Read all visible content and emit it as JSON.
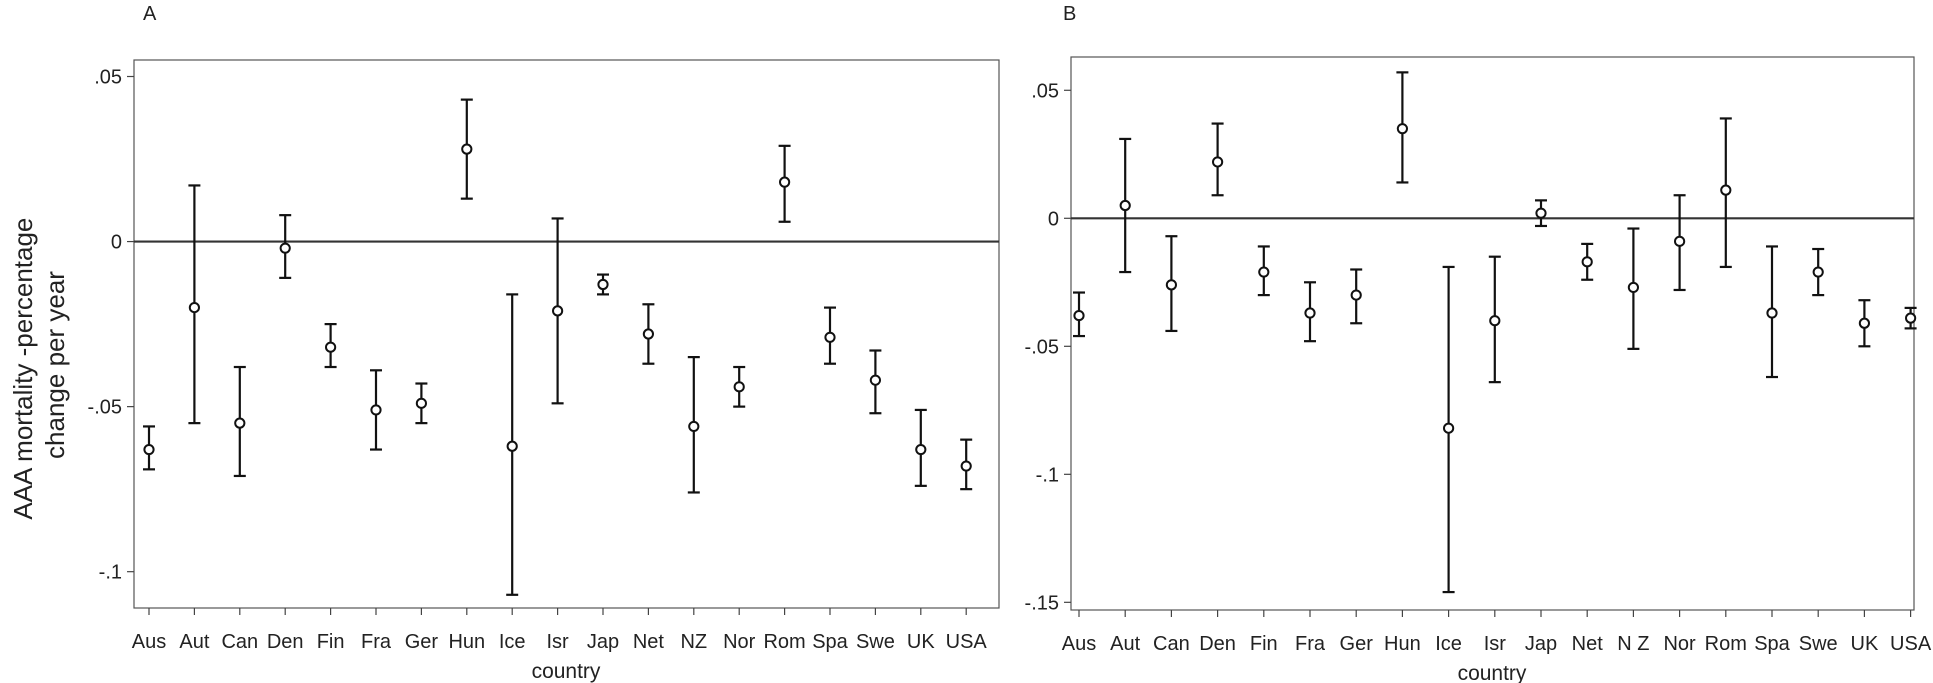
{
  "chart_data": [
    {
      "type": "scatter",
      "panel_label": "A",
      "title": "",
      "xlabel": "country",
      "ylabel_lines": [
        "AAA mortality -percentage",
        "change per year"
      ],
      "categories": [
        "Aus",
        "Aut",
        "Can",
        "Den",
        "Fin",
        "Fra",
        "Ger",
        "Hun",
        "Ice",
        "Isr",
        "Jap",
        "Net",
        "NZ",
        "Nor",
        "Rom",
        "Spa",
        "Swe",
        "UK",
        "USA"
      ],
      "y_ticks": [
        0.05,
        0,
        -0.05,
        -0.1
      ],
      "y_tick_labels": [
        ".05",
        "0",
        "-.05",
        "-.1"
      ],
      "ylim": [
        -0.111,
        0.055
      ],
      "reference_line": 0,
      "series": [
        {
          "estimate": [
            -0.063,
            -0.02,
            -0.055,
            -0.002,
            -0.032,
            -0.051,
            -0.049,
            0.028,
            -0.062,
            -0.021,
            -0.013,
            -0.028,
            -0.056,
            -0.044,
            0.018,
            -0.029,
            -0.042,
            -0.063,
            -0.068
          ],
          "lower": [
            -0.069,
            -0.055,
            -0.071,
            -0.011,
            -0.038,
            -0.063,
            -0.055,
            0.013,
            -0.107,
            -0.049,
            -0.016,
            -0.037,
            -0.076,
            -0.05,
            0.006,
            -0.037,
            -0.052,
            -0.074,
            -0.075
          ],
          "upper": [
            -0.056,
            0.017,
            -0.038,
            0.008,
            -0.025,
            -0.039,
            -0.043,
            0.043,
            -0.016,
            0.007,
            -0.01,
            -0.019,
            -0.035,
            -0.038,
            0.029,
            -0.02,
            -0.033,
            -0.051,
            -0.06
          ]
        }
      ]
    },
    {
      "type": "scatter",
      "panel_label": "B",
      "title": "",
      "xlabel": "country",
      "categories": [
        "Aus",
        "Aut",
        "Can",
        "Den",
        "Fin",
        "Fra",
        "Ger",
        "Hun",
        "Ice",
        "Isr",
        "Jap",
        "Net",
        "NZ",
        "Nor",
        "Rom",
        "Spa",
        "Swe",
        "UK",
        "USA"
      ],
      "category_display": [
        "Aus",
        "Aut",
        "Can",
        "Den",
        "Fin",
        "Fra",
        "Ger",
        "Hun",
        "Ice",
        "Isr",
        "Jap",
        "Net",
        "N Z",
        "Nor",
        "Rom",
        "Spa",
        "Swe",
        "UK",
        "USA"
      ],
      "y_ticks": [
        0.05,
        0,
        -0.05,
        -0.1,
        -0.15
      ],
      "y_tick_labels": [
        ".05",
        "0",
        "-.05",
        "-.1",
        "-.15"
      ],
      "ylim": [
        -0.153,
        0.063
      ],
      "reference_line": 0,
      "series": [
        {
          "estimate": [
            -0.038,
            0.005,
            -0.026,
            0.022,
            -0.021,
            -0.037,
            -0.03,
            0.035,
            -0.082,
            -0.04,
            0.002,
            -0.017,
            -0.027,
            -0.009,
            0.011,
            -0.037,
            -0.021,
            -0.041,
            -0.039
          ],
          "lower": [
            -0.046,
            -0.021,
            -0.044,
            0.009,
            -0.03,
            -0.048,
            -0.041,
            0.014,
            -0.146,
            -0.064,
            -0.003,
            -0.024,
            -0.051,
            -0.028,
            -0.019,
            -0.062,
            -0.03,
            -0.05,
            -0.043
          ],
          "upper": [
            -0.029,
            0.031,
            -0.007,
            0.037,
            -0.011,
            -0.025,
            -0.02,
            0.057,
            -0.019,
            -0.015,
            0.007,
            -0.01,
            -0.004,
            0.009,
            0.039,
            -0.011,
            -0.012,
            -0.032,
            -0.035
          ]
        }
      ]
    }
  ]
}
